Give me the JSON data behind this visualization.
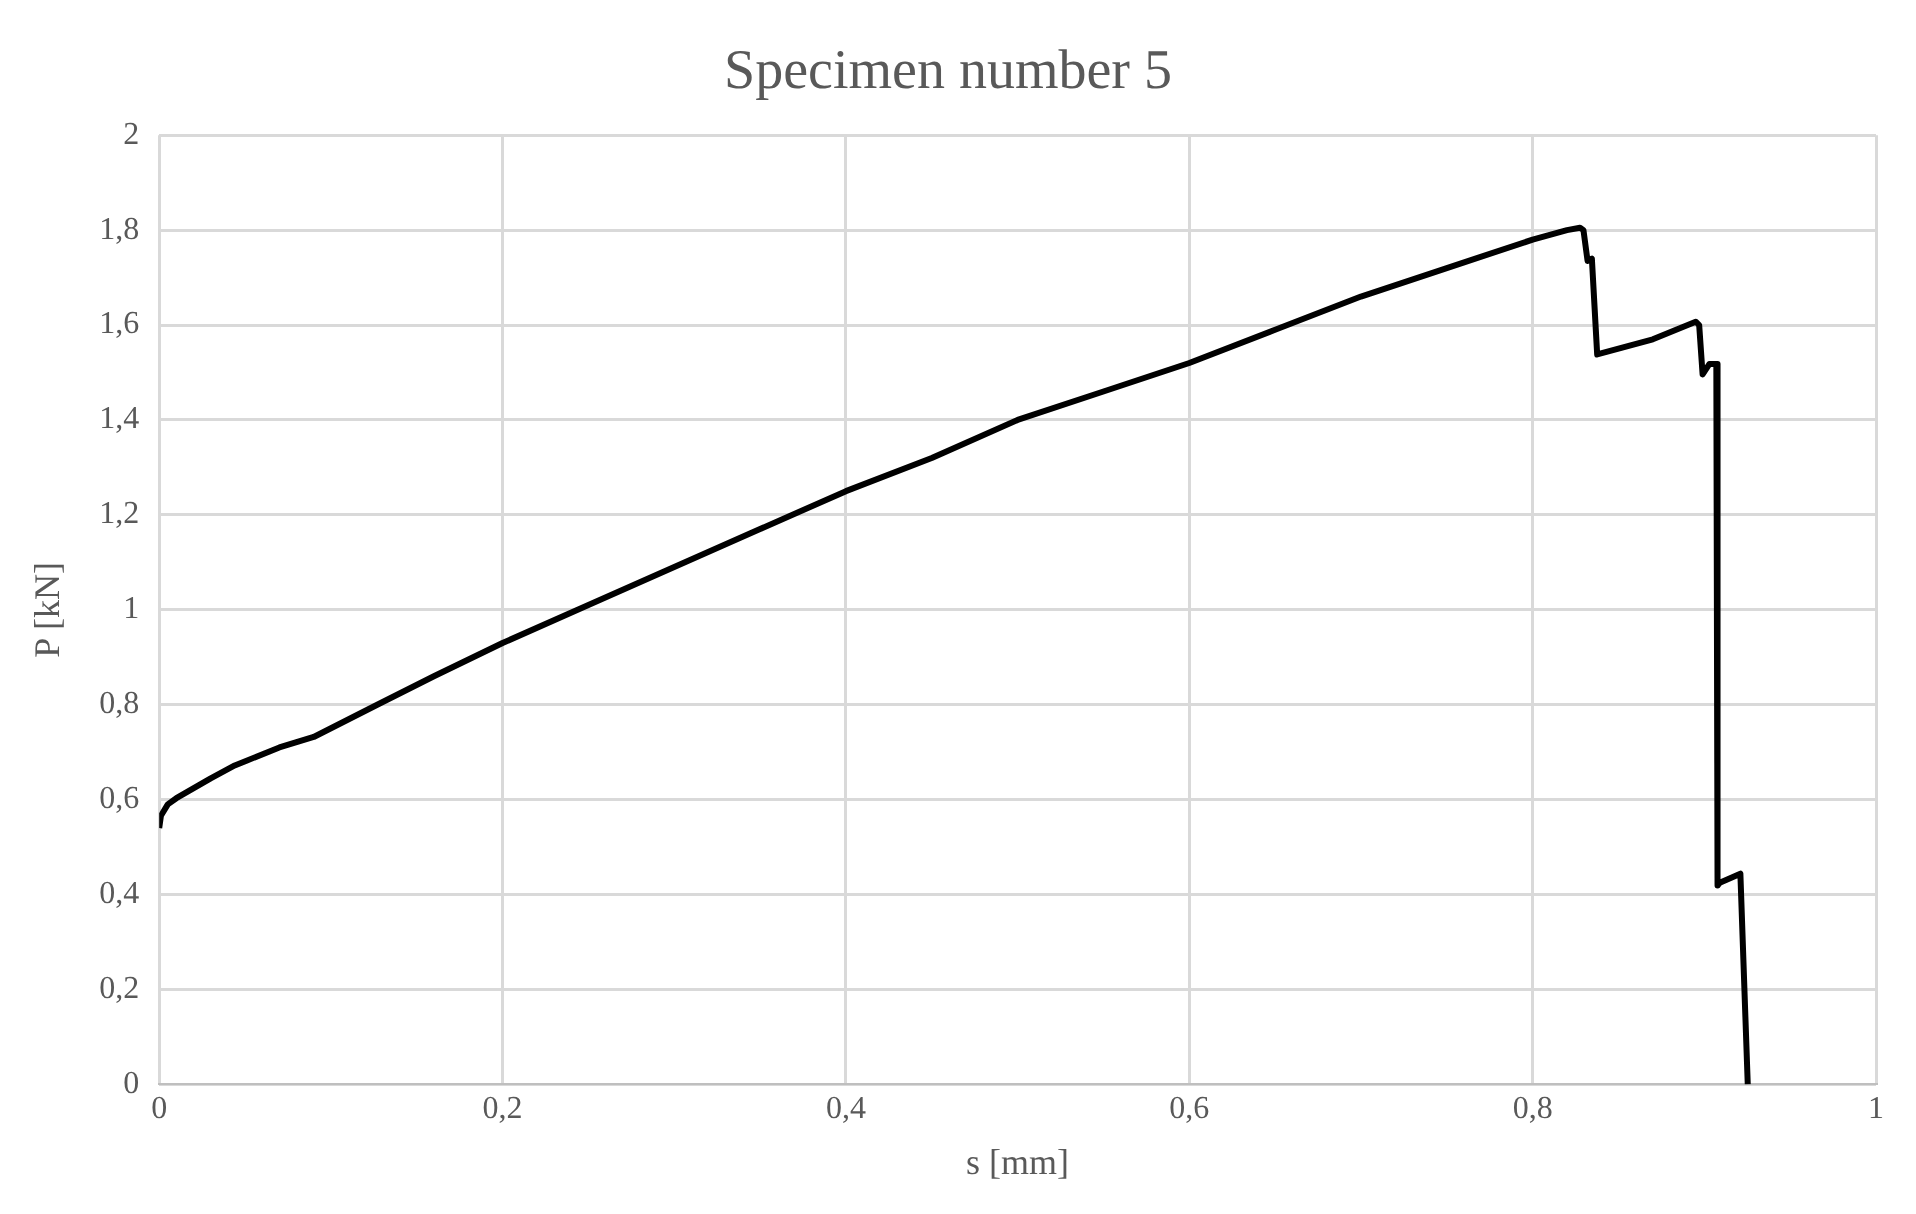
{
  "chart_data": {
    "type": "line",
    "title": "Specimen number 5",
    "xlabel": "s [mm]",
    "ylabel": "P [kN]",
    "series": [
      {
        "color": "#000000",
        "x": [
          0,
          0.001,
          0.005,
          0.01,
          0.03,
          0.044,
          0.07,
          0.09,
          0.127,
          0.16,
          0.2,
          0.25,
          0.3,
          0.35,
          0.4,
          0.45,
          0.5,
          0.55,
          0.6,
          0.65,
          0.7,
          0.75,
          0.8,
          0.82,
          0.8276,
          0.8296,
          0.832,
          0.8345,
          0.8376,
          0.87,
          0.895,
          0.897,
          0.899,
          0.903,
          0.907,
          0.9077,
          0.909,
          0.921,
          0.9253
        ],
        "values": [
          0.54,
          0.566,
          0.59,
          0.603,
          0.645,
          0.672,
          0.71,
          0.732,
          0.8,
          0.86,
          0.93,
          1.01,
          1.09,
          1.17,
          1.25,
          1.32,
          1.4,
          1.46,
          1.52,
          1.59,
          1.66,
          1.72,
          1.78,
          1.8,
          1.805,
          1.8,
          1.735,
          1.74,
          1.538,
          1.57,
          1.607,
          1.6,
          1.496,
          1.518,
          1.518,
          0.419,
          0.425,
          0.444,
          0
        ]
      }
    ],
    "xlim": [
      0,
      1
    ],
    "xticks": [
      {
        "value": 0,
        "label": "0"
      },
      {
        "value": 0.2,
        "label": "0,2"
      },
      {
        "value": 0.4,
        "label": "0,4"
      },
      {
        "value": 0.6,
        "label": "0,6"
      },
      {
        "value": 0.8,
        "label": "0,8"
      },
      {
        "value": 1,
        "label": "1"
      }
    ],
    "ylim": [
      0,
      2
    ],
    "yticks": [
      {
        "value": 0,
        "label": "0"
      },
      {
        "value": 0.2,
        "label": "0,2"
      },
      {
        "value": 0.4,
        "label": "0,4"
      },
      {
        "value": 0.6,
        "label": "0,6"
      },
      {
        "value": 0.8,
        "label": "0,8"
      },
      {
        "value": 1,
        "label": "1"
      },
      {
        "value": 1.2,
        "label": "1,2"
      },
      {
        "value": 1.4,
        "label": "1,4"
      },
      {
        "value": 1.6,
        "label": "1,6"
      },
      {
        "value": 1.8,
        "label": "1,8"
      },
      {
        "value": 2,
        "label": "2"
      }
    ],
    "grid": true,
    "marker": "none",
    "line_style": "solid"
  }
}
